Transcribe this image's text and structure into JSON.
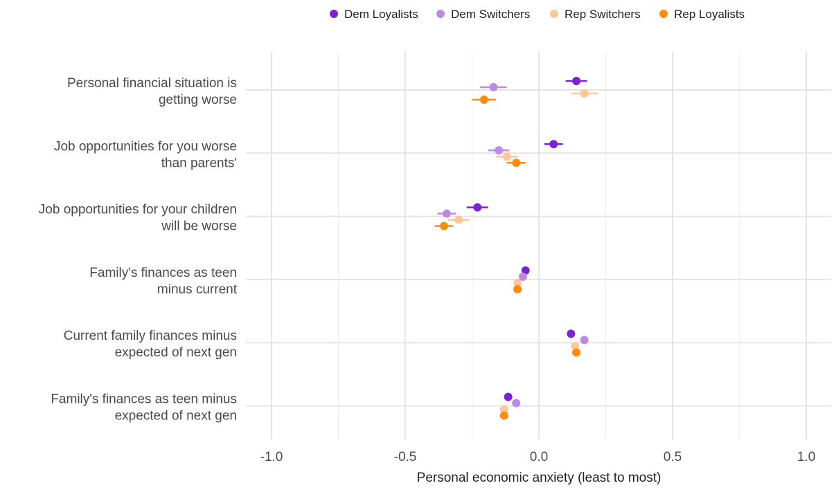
{
  "chart_data": {
    "type": "scatter",
    "title": "",
    "xlabel": "Personal economic anxiety (least to most)",
    "ylabel": "",
    "xlim": [
      -1.0,
      1.0
    ],
    "xticks": [
      "-1.0",
      "-0.5",
      "0.0",
      "0.5",
      "1.0"
    ],
    "tick_values": [
      -1.0,
      -0.5,
      0.0,
      0.5,
      1.0
    ],
    "grid": true,
    "legend_position": "top",
    "categories": [
      [
        "Personal financial situation is",
        "getting worse"
      ],
      [
        "Job opportunities for you worse",
        "than parents'"
      ],
      [
        "Job opportunities for your children",
        "will be worse"
      ],
      [
        "Family's finances as teen",
        "minus current"
      ],
      [
        "Current family finances minus",
        "expected of next gen"
      ],
      [
        "Family's finances as teen minus",
        "expected of next gen"
      ]
    ],
    "series": [
      {
        "name": "Dem Loyalists",
        "color": "#7B22D4",
        "opacity": 1.0,
        "values": [
          0.14,
          0.055,
          -0.23,
          -0.05,
          0.12,
          -0.115
        ],
        "ci": [
          [
            0.1,
            0.18
          ],
          [
            0.02,
            0.09
          ],
          [
            -0.27,
            -0.19
          ],
          null,
          null,
          null
        ]
      },
      {
        "name": "Dem Switchers",
        "color": "#B98AE6",
        "opacity": 1.0,
        "values": [
          -0.17,
          -0.15,
          -0.345,
          -0.06,
          0.17,
          -0.085
        ],
        "ci": [
          [
            -0.22,
            -0.12
          ],
          [
            -0.19,
            -0.11
          ],
          [
            -0.38,
            -0.31
          ],
          null,
          null,
          null
        ]
      },
      {
        "name": "Rep Switchers",
        "color": "#FDC79A",
        "opacity": 1.0,
        "values": [
          0.17,
          -0.12,
          -0.3,
          -0.08,
          0.135,
          -0.13
        ],
        "ci": [
          [
            0.12,
            0.22
          ],
          [
            -0.16,
            -0.08
          ],
          [
            -0.34,
            -0.26
          ],
          null,
          null,
          null
        ]
      },
      {
        "name": "Rep Loyalists",
        "color": "#FF8C0F",
        "opacity": 1.0,
        "values": [
          -0.205,
          -0.085,
          -0.355,
          -0.08,
          0.14,
          -0.13
        ],
        "ci": [
          [
            -0.25,
            -0.16
          ],
          [
            -0.12,
            -0.05
          ],
          [
            -0.39,
            -0.32
          ],
          null,
          null,
          null
        ]
      }
    ]
  }
}
